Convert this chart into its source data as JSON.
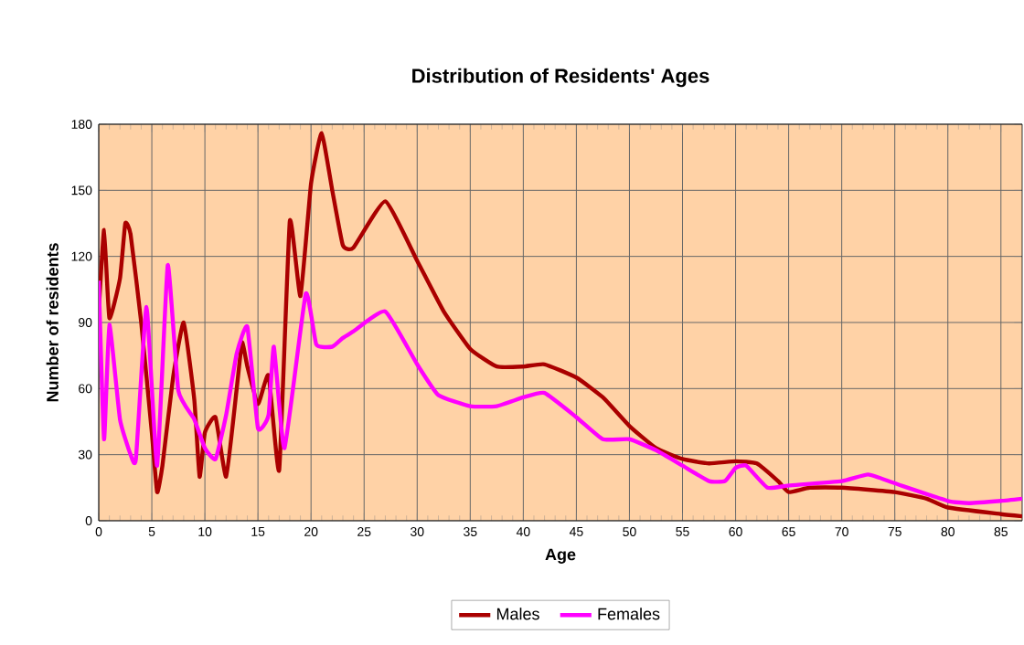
{
  "chart_data": {
    "type": "line",
    "title": "Distribution of Residents' Ages",
    "xlabel": "Age",
    "ylabel": "Number of residents",
    "xlim": [
      0,
      87
    ],
    "ylim": [
      0,
      180
    ],
    "xticks": [
      0,
      5,
      10,
      15,
      20,
      25,
      30,
      35,
      40,
      45,
      50,
      55,
      60,
      65,
      70,
      75,
      80,
      85
    ],
    "yticks": [
      0,
      30,
      60,
      90,
      120,
      150,
      180
    ],
    "grid": true,
    "legend": "bottom",
    "marker": "none",
    "line_style": "solid",
    "series": [
      {
        "name": "Males",
        "color": "#aa0000",
        "x": [
          0,
          0.5,
          1,
          2,
          2.5,
          3,
          4,
          5,
          5.5,
          6,
          7,
          8,
          9,
          9.5,
          10,
          11,
          12,
          13,
          13.5,
          14,
          15,
          16,
          17,
          18,
          19,
          20,
          21,
          22,
          23,
          24,
          27,
          30,
          32.5,
          35,
          37.5,
          40,
          42,
          45,
          47.5,
          50,
          52.5,
          55,
          57.5,
          60,
          62,
          64,
          65,
          67,
          70,
          75,
          78,
          80,
          85,
          87
        ],
        "values": [
          95,
          132,
          92,
          110,
          135,
          130,
          90,
          40,
          13,
          25,
          65,
          90,
          55,
          20,
          40,
          47,
          20,
          60,
          81,
          70,
          53,
          66,
          23,
          136,
          102,
          153,
          176,
          150,
          125,
          124,
          145,
          118,
          95,
          78,
          70,
          70,
          71,
          65,
          56,
          43,
          33,
          28,
          26,
          27,
          26,
          18,
          13,
          15,
          15,
          13,
          10,
          6,
          3,
          2
        ]
      },
      {
        "name": "Females",
        "color": "#ff00ff",
        "x": [
          0,
          0.5,
          1,
          2,
          3,
          3.5,
          4.5,
          5.5,
          6.5,
          7.5,
          9,
          10,
          11,
          12,
          13,
          14,
          15,
          16,
          16.5,
          17.5,
          19.5,
          20.5,
          22,
          23,
          24,
          27,
          30,
          32,
          35,
          37.5,
          40,
          42,
          45,
          47.5,
          50,
          52.5,
          55,
          57.5,
          59,
          60,
          61,
          63,
          65,
          70,
          72.5,
          75,
          80,
          82,
          85,
          87
        ],
        "values": [
          109,
          37,
          89,
          46,
          30,
          28,
          97,
          25,
          116,
          59,
          46,
          33,
          28,
          48,
          76,
          88,
          42,
          48,
          79,
          33,
          103,
          80,
          79,
          83,
          86,
          95,
          71,
          57,
          52,
          52,
          56,
          58,
          47,
          37,
          37,
          32,
          25,
          18,
          18,
          24,
          25,
          15,
          16,
          18,
          21,
          17,
          9,
          8,
          9,
          10
        ]
      }
    ]
  }
}
